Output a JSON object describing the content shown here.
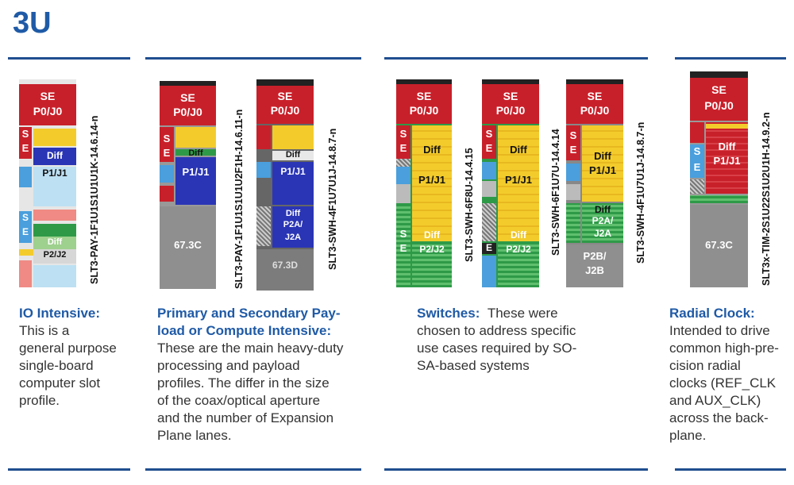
{
  "heading": "3U",
  "colors": {
    "accent": "#1f5aa6",
    "rule": "#1f4e8f",
    "red": "#c8202a",
    "yellow": "#f3cc2c",
    "blue": "#2a35b5",
    "green": "#2e9a48",
    "gray": "#8f8f8f"
  },
  "boards": {
    "io": {
      "label": "SLT3-PAY-1F1U1S1U1U1K-14.6.14-n",
      "se": "SE",
      "p0": "P0/J0",
      "s": "S",
      "e": "E",
      "diff1": "Diff",
      "p1": "P1/J1",
      "diff2": "Diff",
      "p2": "P2/J2"
    },
    "pay1": {
      "label": "SLT3-PAY-1F1U1S1U1U2F1H-14.6.11-n",
      "se": "SE",
      "p0": "P0/J0",
      "s": "S",
      "e": "E",
      "diff": "Diff",
      "p1": "P1/J1",
      "temp": "67.3C"
    },
    "pay2": {
      "label": "SLT3-SWH-4F1U7U1J-14.8.7-n",
      "se": "SE",
      "p0": "P0/J0",
      "diff1": "Diff",
      "p1": "P1/J1",
      "diff2": "Diff",
      "p2a": "P2A/",
      "j2a": "J2A",
      "temp": "67.3D"
    },
    "sw1": {
      "label": "SLT3-SWH-6F8U-14.4.15",
      "se": "SE",
      "p0": "P0/J0",
      "s": "S",
      "e": "E",
      "diff1": "Diff",
      "p1": "P1/J1",
      "s2": "S",
      "e2": "E",
      "diff2": "Diff",
      "p2": "P2/J2"
    },
    "sw2": {
      "label": "SLT3-SWH-6F1U7U-14.4.14",
      "se": "SE",
      "p0": "P0/J0",
      "s": "S",
      "e": "E",
      "diff1": "Diff",
      "p1": "P1/J1",
      "e2": "E",
      "diff2": "Diff",
      "p2": "P2/J2"
    },
    "sw3": {
      "label": "SLT3-SWH-4F1U7U1J-14.8.7-n",
      "se": "SE",
      "p0": "P0/J0",
      "s": "S",
      "e": "E",
      "diff1": "Diff",
      "p1": "P1/J1",
      "diff2": "Diff",
      "p2a": "P2A/",
      "j2a": "J2A",
      "p2b": "P2B/",
      "j2b": "J2B"
    },
    "clk": {
      "label": "SLT3x-TIM-2S1U22S1U2U1H-14.9.2-n",
      "se": "SE",
      "p0": "P0/J0",
      "s": "S",
      "e": "E",
      "diff": "Diff",
      "p1": "P1/J1",
      "temp": "67.3C"
    }
  },
  "captions": {
    "io": {
      "title": "IO Intensive:",
      "lines": [
        "This is a",
        "general purpose",
        "single-board",
        "computer slot",
        "profile."
      ]
    },
    "payload": {
      "title1": "Primary and Secondary Pay-",
      "title2": "load or Compute Intensive:",
      "lines": [
        "These are the main heavy-duty",
        "processing and payload",
        "profiles.  The differ in the size",
        "of the coax/optical aperture",
        "and the number of Expansion",
        "Plane lanes."
      ]
    },
    "switches": {
      "title": "Switches:",
      "first": "These were",
      "lines": [
        "chosen to address specific",
        "use cases required by SO-",
        "SA-based systems"
      ]
    },
    "radial": {
      "title": "Radial Clock:",
      "lines": [
        "Intended to drive",
        "common high-pre-",
        "cision radial",
        "clocks (REF_CLK",
        "and AUX_CLK)",
        "across the back-",
        "plane."
      ]
    }
  }
}
